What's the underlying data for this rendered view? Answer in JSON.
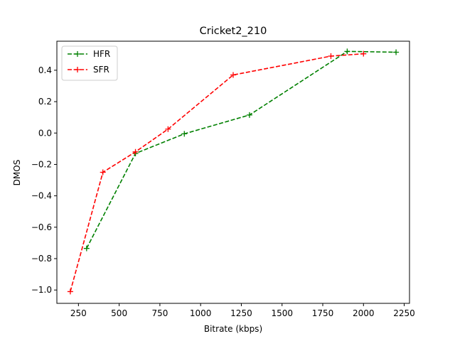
{
  "chart_data": {
    "type": "line",
    "title": "Cricket2_210",
    "xlabel": "Bitrate (kbps)",
    "ylabel": "DMOS",
    "xlim": [
      117.5,
      2282.5
    ],
    "ylim": [
      -1.085,
      0.585
    ],
    "xticks": [
      250,
      500,
      750,
      1000,
      1250,
      1500,
      1750,
      2000,
      2250
    ],
    "xtick_labels": [
      "250",
      "500",
      "750",
      "1000",
      "1250",
      "1500",
      "1750",
      "2000",
      "2250"
    ],
    "yticks": [
      -1.0,
      -0.8,
      -0.6,
      -0.4,
      -0.2,
      0.0,
      0.2,
      0.4
    ],
    "ytick_labels": [
      "−1.0",
      "−0.8",
      "−0.6",
      "−0.4",
      "−0.2",
      "0.0",
      "0.2",
      "0.4"
    ],
    "grid": false,
    "legend_position": "upper left",
    "series": [
      {
        "name": "HFR",
        "color": "#008000",
        "line_style": "dashed",
        "marker": "plus",
        "x": [
          300,
          600,
          900,
          1300,
          1900,
          2200
        ],
        "y": [
          -0.735,
          -0.13,
          -0.005,
          0.115,
          0.52,
          0.515
        ]
      },
      {
        "name": "SFR",
        "color": "#ff0000",
        "line_style": "dashed",
        "marker": "plus",
        "x": [
          200,
          400,
          600,
          800,
          1200,
          1800,
          2000
        ],
        "y": [
          -1.01,
          -0.25,
          -0.12,
          0.025,
          0.37,
          0.49,
          0.505
        ]
      }
    ]
  }
}
